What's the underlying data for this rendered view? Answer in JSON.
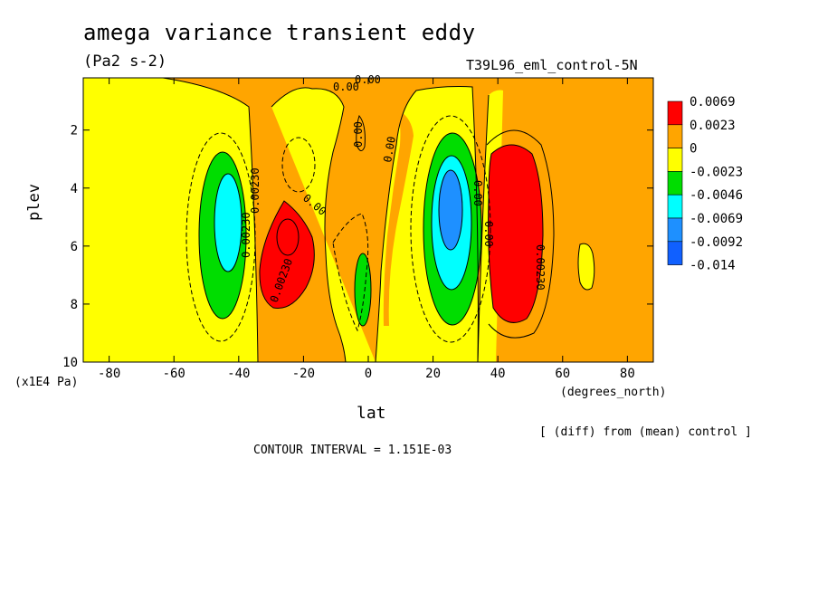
{
  "header": {
    "title": "amega variance transient eddy",
    "units": "(Pa2 s-2)",
    "dataset": "T39L96_eml_control-5N"
  },
  "axes": {
    "ylabel": "plev",
    "yunits": "(x1E4 Pa)",
    "xlabel": "lat",
    "xunits": "(degrees_north)"
  },
  "footer": {
    "note": "[ (diff) from (mean) control ]",
    "interval": "CONTOUR INTERVAL = 1.151E-03"
  },
  "chart_data": {
    "type": "contour",
    "title": "amega variance transient eddy",
    "subtitle": "(Pa2 s-2)",
    "xlabel": "lat",
    "ylabel": "plev",
    "x_units": "(degrees_north)",
    "y_units": "(x1E4 Pa)",
    "xlim": [
      -88,
      88
    ],
    "ylim": [
      0.2,
      10
    ],
    "y_inverted": true,
    "x_ticks": [
      -80,
      -60,
      -40,
      -20,
      0,
      20,
      40,
      60,
      80
    ],
    "y_ticks": [
      2,
      4,
      6,
      8,
      10
    ],
    "contour_interval": 0.001151,
    "legend": {
      "placement": "right",
      "levels": [
        "0.0069",
        "0.0023",
        "0",
        "-0.0023",
        "-0.0046",
        "-0.0069",
        "-0.0092",
        "-0.014"
      ],
      "colors": [
        "#ff0000",
        "#ffa500",
        "#ffff00",
        "#00dd00",
        "#00ffff",
        "#1e90ff",
        "#1060ff"
      ]
    },
    "contour_labels": [
      "0.00",
      "0.00",
      "0.00",
      "0.00",
      "0.00230",
      "0.00230",
      "0.00",
      "0.00230",
      "0.00230",
      "0.00",
      "0.00"
    ],
    "features": [
      {
        "kind": "min",
        "lat": -44,
        "plev": 4.8,
        "value": -0.0069
      },
      {
        "kind": "max",
        "lat": -28,
        "plev": 6.0,
        "value": 0.0069
      },
      {
        "kind": "min",
        "lat": 0,
        "plev": 7.0,
        "value": -0.0023
      },
      {
        "kind": "min",
        "lat": 26,
        "plev": 4.4,
        "value": -0.0092
      },
      {
        "kind": "max",
        "lat": 43,
        "plev": 5.2,
        "value": 0.0069
      },
      {
        "kind": "min",
        "lat": 68,
        "plev": 6.8,
        "value": -0.0023
      }
    ]
  }
}
